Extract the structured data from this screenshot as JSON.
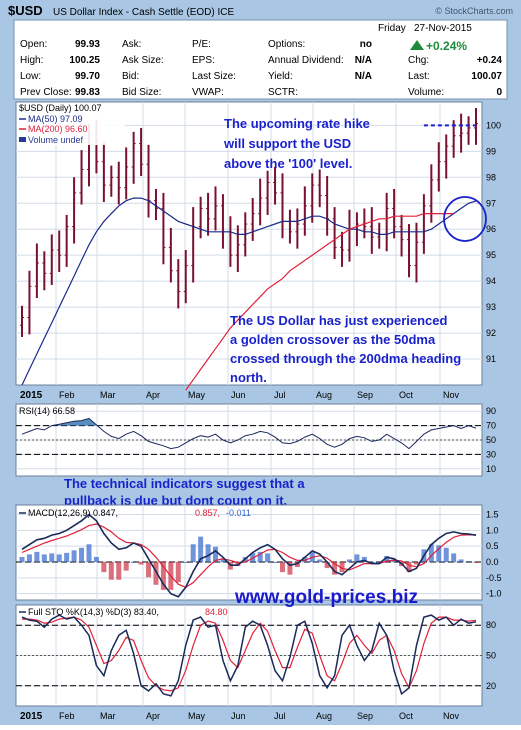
{
  "colors": {
    "frame": "#a9c7e4",
    "panel_bg": "#ffffff",
    "grid": "#d2dce8",
    "price_bar": "#7a1030",
    "ma50": "#1a2a8a",
    "ma200": "#e0203a",
    "annotation_text": "#1a22cc",
    "rsi_fill": "#2f6fb0",
    "macd_line": "#1a2a5a",
    "macd_signal": "#e0203a",
    "hist_pos": "#3366cc",
    "hist_neg": "#cc3344",
    "sto_k": "#1a2a5a",
    "sto_d": "#e0203a",
    "change_up": "#1e8a3a"
  },
  "header": {
    "symbol": "$USD",
    "title": "US Dollar Index - Cash Settle (EOD) ICE",
    "watermark": "© StockCharts.com",
    "day": "Friday",
    "date": "27-Nov-2015",
    "change_pct": "+0.24%",
    "rows": [
      [
        {
          "l": "Open:",
          "v": "99.93"
        },
        {
          "l": "Ask:",
          "v": ""
        },
        {
          "l": "P/E:",
          "v": ""
        },
        {
          "l": "Options:",
          "v": "no"
        }
      ],
      [
        {
          "l": "High:",
          "v": "100.25"
        },
        {
          "l": "Ask Size:",
          "v": ""
        },
        {
          "l": "EPS:",
          "v": ""
        },
        {
          "l": "Annual Dividend:",
          "v": "N/A"
        }
      ],
      [
        {
          "l": "Low:",
          "v": "99.70"
        },
        {
          "l": "Bid:",
          "v": ""
        },
        {
          "l": "Last Size:",
          "v": ""
        },
        {
          "l": "Yield:",
          "v": "N/A"
        }
      ],
      [
        {
          "l": "Prev Close:",
          "v": "99.83"
        },
        {
          "l": "Bid Size:",
          "v": ""
        },
        {
          "l": "VWAP:",
          "v": ""
        },
        {
          "l": "SCTR:",
          "v": ""
        }
      ]
    ],
    "right_rows": [
      {
        "l": "Chg:",
        "v": "+0.24"
      },
      {
        "l": "Last:",
        "v": "100.07"
      },
      {
        "l": "Volume:",
        "v": "0"
      }
    ]
  },
  "chart_data": [
    {
      "type": "bar",
      "title": "$USD (Daily) 100.07",
      "legend": [
        "$USD (Daily) 100.07",
        "MA(50) 97.09",
        "MA(200) 96.60",
        "Volume undef"
      ],
      "legend_placement": "top-left",
      "ylim": [
        90,
        100.9
      ],
      "y_ticks": [
        91,
        92,
        93,
        94,
        95,
        96,
        97,
        98,
        99,
        100
      ],
      "x_labels": [
        "2015",
        "Feb",
        "Mar",
        "Apr",
        "May",
        "Jun",
        "Jul",
        "Aug",
        "Sep",
        "Oct",
        "Nov"
      ],
      "price_close_by_week": [
        92.6,
        93.8,
        94.7,
        94.3,
        95.2,
        95.0,
        96.1,
        97.4,
        98.3,
        99.6,
        98.6,
        97.7,
        98.0,
        97.6,
        98.4,
        99.3,
        98.5,
        97.1,
        96.8,
        95.3,
        94.4,
        93.6,
        94.6,
        96.1,
        96.8,
        96.4,
        96.9,
        95.9,
        95.0,
        95.4,
        96.2,
        96.6,
        97.2,
        97.8,
        97.4,
        96.3,
        95.9,
        96.2,
        96.9,
        97.7,
        97.3,
        96.4,
        95.3,
        95.2,
        96.0,
        96.2,
        96.1,
        95.7,
        95.8,
        96.8,
        96.1,
        95.6,
        94.6,
        95.5,
        96.9,
        97.9,
        98.6,
        99.2,
        99.6,
        99.7,
        99.9,
        100.07
      ],
      "ma50_by_week": [
        90.0,
        90.6,
        91.2,
        91.8,
        92.4,
        93.0,
        93.6,
        94.2,
        94.8,
        95.4,
        95.9,
        96.3,
        96.6,
        96.9,
        97.1,
        97.2,
        97.2,
        97.1,
        96.9,
        96.7,
        96.5,
        96.3,
        96.2,
        96.1,
        96.0,
        95.9,
        95.9,
        95.9,
        95.9,
        95.8,
        95.8,
        95.9,
        96.0,
        96.1,
        96.2,
        96.3,
        96.3,
        96.3,
        96.4,
        96.5,
        96.5,
        96.4,
        96.2,
        96.1,
        96.0,
        96.0,
        95.9,
        95.9,
        95.8,
        95.8,
        95.9,
        95.9,
        95.9,
        95.9,
        95.9,
        96.0,
        96.2,
        96.4,
        96.6,
        96.8,
        97.0,
        97.09
      ],
      "ma200_start_week": 22,
      "ma200_by_week": [
        89.8,
        90.2,
        90.6,
        91.0,
        91.4,
        91.8,
        92.2,
        92.5,
        92.8,
        93.1,
        93.4,
        93.7,
        93.9,
        94.1,
        94.4,
        94.6,
        94.8,
        95.0,
        95.2,
        95.4,
        95.6,
        95.8,
        96.0,
        96.1,
        96.2,
        96.3,
        96.4,
        96.4,
        96.5,
        96.5,
        96.5,
        96.5,
        96.6,
        96.6,
        96.6,
        96.6,
        96.6
      ],
      "annotations": [
        "The upcoming rate hike will support the USD above the '100' level.",
        "The US Dollar has just experienced a golden crossover as the 50dma crossed through the 200dma heading north."
      ],
      "reference_level": 100
    },
    {
      "type": "area",
      "title": "RSI(14) 66.58",
      "y_ticks": [
        10,
        30,
        50,
        70,
        90
      ],
      "ylim": [
        0,
        100
      ],
      "rsi_by_week": [
        58,
        62,
        66,
        64,
        70,
        72,
        74,
        76,
        77,
        80,
        71,
        62,
        55,
        52,
        58,
        62,
        56,
        48,
        45,
        42,
        38,
        40,
        46,
        52,
        56,
        54,
        58,
        50,
        46,
        50,
        56,
        58,
        62,
        60,
        54,
        46,
        45,
        48,
        54,
        58,
        52,
        44,
        40,
        44,
        52,
        55,
        53,
        48,
        50,
        58,
        52,
        46,
        38,
        48,
        58,
        64,
        66,
        68,
        70,
        66,
        70,
        66.58
      ],
      "annotation": "The technical indicators suggest that a pullback is due but dont count on it."
    },
    {
      "type": "line",
      "title": "MACD(12,26,9) 0.847, 0.857, -0.011",
      "legend": [
        "MACD(12,26,9) 0.847,",
        "0.857,",
        "-0.011"
      ],
      "ylim": [
        -1.2,
        1.8
      ],
      "y_ticks": [
        -1.0,
        -0.5,
        0.0,
        0.5,
        1.0,
        1.5
      ],
      "macd_by_week": [
        0.4,
        0.55,
        0.7,
        0.75,
        0.85,
        0.9,
        1.0,
        1.15,
        1.3,
        1.5,
        1.3,
        0.9,
        0.6,
        0.4,
        0.45,
        0.6,
        0.5,
        0.1,
        -0.3,
        -0.7,
        -1.0,
        -1.1,
        -0.8,
        -0.3,
        0.1,
        0.2,
        0.35,
        0.15,
        -0.1,
        -0.1,
        0.1,
        0.3,
        0.45,
        0.55,
        0.4,
        0.1,
        -0.1,
        -0.05,
        0.15,
        0.35,
        0.25,
        0.0,
        -0.3,
        -0.4,
        -0.2,
        0.0,
        0.05,
        -0.05,
        -0.05,
        0.15,
        0.1,
        -0.05,
        -0.3,
        -0.2,
        0.2,
        0.55,
        0.75,
        0.9,
        0.95,
        0.9,
        0.88,
        0.847
      ],
      "signal_by_week": [
        0.3,
        0.4,
        0.5,
        0.6,
        0.68,
        0.75,
        0.82,
        0.92,
        1.02,
        1.15,
        1.2,
        1.1,
        0.95,
        0.75,
        0.62,
        0.6,
        0.55,
        0.4,
        0.15,
        -0.15,
        -0.45,
        -0.7,
        -0.8,
        -0.65,
        -0.4,
        -0.15,
        0.05,
        0.1,
        0.05,
        -0.02,
        0.0,
        0.12,
        0.25,
        0.38,
        0.4,
        0.3,
        0.15,
        0.05,
        0.05,
        0.15,
        0.2,
        0.12,
        -0.05,
        -0.2,
        -0.25,
        -0.15,
        -0.05,
        -0.05,
        -0.05,
        0.03,
        0.06,
        0.03,
        -0.1,
        -0.15,
        -0.05,
        0.2,
        0.42,
        0.62,
        0.78,
        0.85,
        0.86,
        0.857
      ]
    },
    {
      "type": "line",
      "title": "Full STO %K(14,3) %D(3) 83.40, 84.80",
      "legend": [
        "Full STO %K(14,3) %D(3) 83.40,",
        "84.80"
      ],
      "ylim": [
        0,
        100
      ],
      "y_ticks": [
        20,
        50,
        80
      ],
      "k_by_week": [
        88,
        85,
        84,
        78,
        86,
        90,
        86,
        88,
        80,
        70,
        40,
        30,
        55,
        70,
        75,
        52,
        20,
        15,
        22,
        12,
        10,
        25,
        60,
        85,
        88,
        78,
        80,
        45,
        25,
        40,
        78,
        84,
        80,
        60,
        35,
        25,
        48,
        80,
        84,
        62,
        30,
        18,
        30,
        70,
        80,
        60,
        45,
        55,
        82,
        70,
        35,
        12,
        18,
        60,
        88,
        90,
        85,
        88,
        80,
        86,
        82,
        83.4
      ],
      "d_by_week": [
        86,
        86,
        85,
        82,
        83,
        86,
        87,
        88,
        85,
        78,
        60,
        42,
        45,
        55,
        68,
        65,
        45,
        28,
        20,
        16,
        15,
        18,
        35,
        60,
        80,
        84,
        82,
        65,
        45,
        38,
        55,
        72,
        82,
        74,
        55,
        38,
        38,
        58,
        76,
        72,
        50,
        30,
        25,
        42,
        62,
        70,
        60,
        52,
        65,
        70,
        55,
        32,
        18,
        35,
        62,
        82,
        88,
        88,
        85,
        85,
        84,
        84.8
      ],
      "watermark": "www.gold-prices.biz"
    }
  ]
}
